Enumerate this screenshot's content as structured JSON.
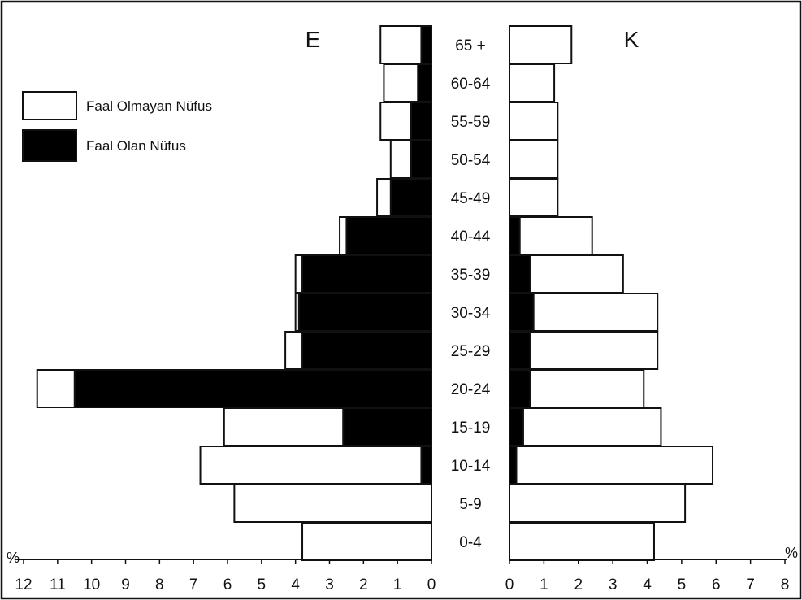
{
  "chart_data": {
    "type": "bar",
    "orientation": "horizontal",
    "layout": "population-pyramid",
    "panels": [
      {
        "key": "male",
        "label": "E"
      },
      {
        "key": "female",
        "label": "K"
      }
    ],
    "categories": [
      "65 +",
      "60-64",
      "55-59",
      "50-54",
      "45-49",
      "40-44",
      "35-39",
      "30-34",
      "25-29",
      "20-24",
      "15-19",
      "10-14",
      "5-9",
      "0-4"
    ],
    "series": [
      {
        "name": "Faal Olan Nüfus",
        "color": "#000000",
        "male": [
          0.3,
          0.4,
          0.6,
          0.6,
          1.2,
          2.5,
          3.8,
          3.9,
          3.8,
          10.5,
          2.6,
          0.3,
          0,
          0
        ],
        "female": [
          0,
          0,
          0,
          0,
          0,
          0.3,
          0.6,
          0.7,
          0.6,
          0.6,
          0.4,
          0.2,
          0,
          0
        ]
      },
      {
        "name": "Faal Olmayan Nüfus",
        "color": "#ffffff",
        "male": [
          1.2,
          1.0,
          0.9,
          0.6,
          0.4,
          0.2,
          0.2,
          0.1,
          0.5,
          1.1,
          3.5,
          6.5,
          5.8,
          3.8
        ],
        "female": [
          1.8,
          1.3,
          1.4,
          1.4,
          1.4,
          2.1,
          2.7,
          3.6,
          3.7,
          3.3,
          4.0,
          5.7,
          5.1,
          4.2
        ]
      }
    ],
    "x_unit_label": "%",
    "male_ticks": [
      12,
      11,
      10,
      9,
      8,
      7,
      6,
      5,
      4,
      3,
      2,
      1,
      0
    ],
    "female_ticks": [
      0,
      1,
      2,
      3,
      4,
      5,
      6,
      7,
      8
    ],
    "male_xlim": [
      0,
      12
    ],
    "female_xlim": [
      0,
      8
    ],
    "legend_position": "top-left",
    "grid": false
  }
}
